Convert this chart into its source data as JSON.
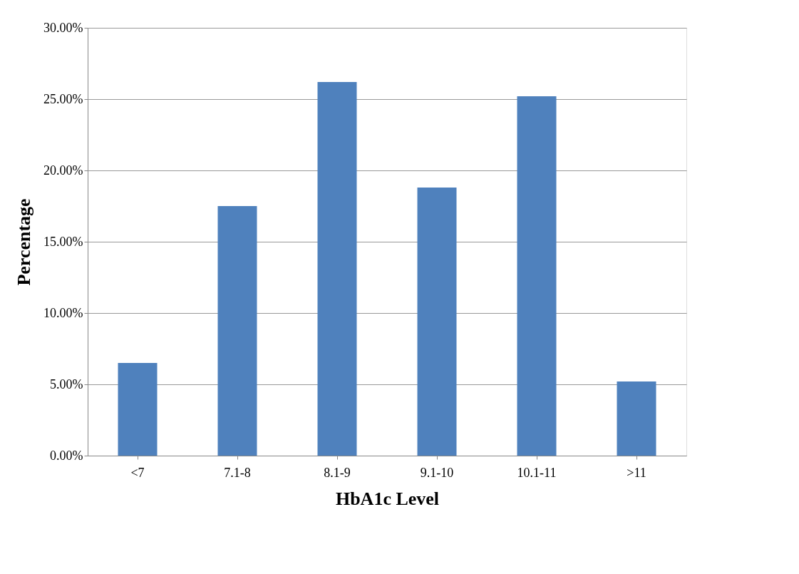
{
  "chart_data": {
    "type": "bar",
    "xlabel": "HbA1c Level",
    "ylabel": "Percentage",
    "categories": [
      "<7",
      "7.1-8",
      "8.1-9",
      "9.1-10",
      "10.1-11",
      ">11"
    ],
    "values": [
      6.5,
      17.5,
      26.2,
      18.8,
      25.2,
      5.2
    ],
    "color": "#4f81bd",
    "ylim": [
      0,
      30
    ],
    "yticks": [
      {
        "value": 0,
        "label": "0.00%"
      },
      {
        "value": 5,
        "label": "5.00%"
      },
      {
        "value": 10,
        "label": "10.00%"
      },
      {
        "value": 15,
        "label": "15.00%"
      },
      {
        "value": 20,
        "label": "20.00%"
      },
      {
        "value": 25,
        "label": "25.00%"
      },
      {
        "value": 30,
        "label": "30.00%"
      }
    ],
    "grid": "y"
  }
}
